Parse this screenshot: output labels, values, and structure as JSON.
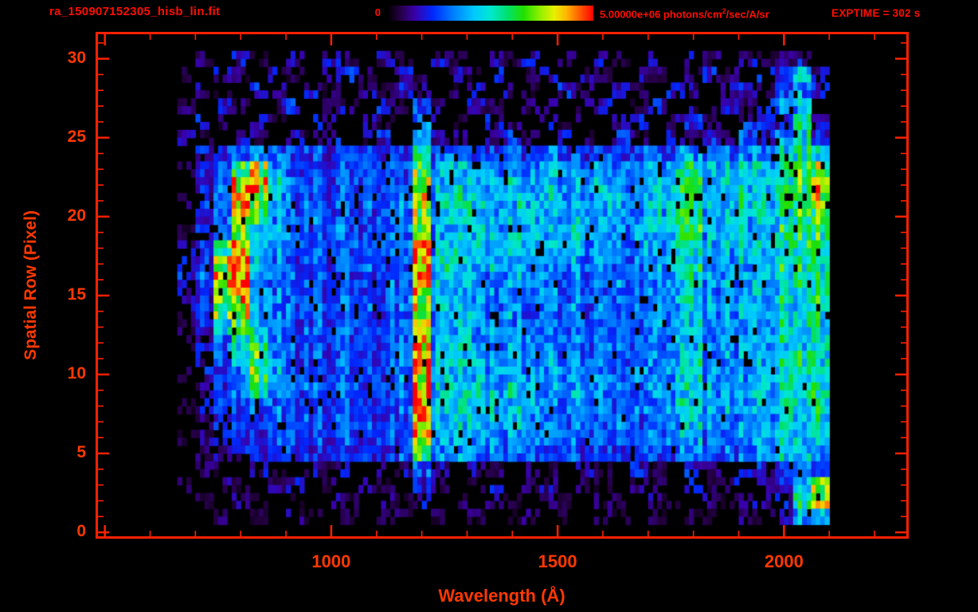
{
  "header": {
    "filename": "ra_150907152305_hisb_lin.fit",
    "colorbar_min": "0",
    "colorbar_max_prefix": "5.00000e+06 photons/cm",
    "colorbar_max_sup": "2",
    "colorbar_max_suffix": "/sec/A/sr",
    "exptime": "EXPTIME = 302 s"
  },
  "axes": {
    "xlabel": "Wavelength (Å)",
    "ylabel": "Spatial Row (Pixel)",
    "x_ticks": [
      1000,
      1500,
      2000
    ],
    "y_ticks": [
      0,
      5,
      10,
      15,
      20,
      25,
      30
    ],
    "x_range": [
      483,
      2272
    ],
    "y_range": [
      -0.3,
      31.6
    ],
    "x_minor_step": 100,
    "x_major_step": 500,
    "y_minor_step": 1,
    "y_major_step": 5
  },
  "colors": {
    "palette": {
      "background": "#000000",
      "frame": "#ff2000",
      "text-header": "#ff0e00",
      "text-axis": "#ff3800"
    },
    "colormap_stops": [
      [
        0.0,
        "#000000"
      ],
      [
        0.06,
        "#250043"
      ],
      [
        0.13,
        "#3a00a8"
      ],
      [
        0.22,
        "#0028ff"
      ],
      [
        0.32,
        "#0080ff"
      ],
      [
        0.42,
        "#00c8ff"
      ],
      [
        0.5,
        "#00e8d0"
      ],
      [
        0.58,
        "#00e070"
      ],
      [
        0.66,
        "#20e000"
      ],
      [
        0.74,
        "#90f000"
      ],
      [
        0.81,
        "#e8f000"
      ],
      [
        0.87,
        "#ffb400"
      ],
      [
        0.93,
        "#ff6000"
      ],
      [
        1.0,
        "#ff0000"
      ]
    ]
  },
  "chart_data": {
    "type": "heatmap",
    "title": "ra_150907152305_hisb_lin.fit",
    "xlabel": "Wavelength (Å)",
    "ylabel": "Spatial Row (Pixel)",
    "exposure_time_s": 302,
    "intensity_min": 0,
    "intensity_max": 5000000,
    "intensity_units": "photons/cm2/sec/A/sr",
    "wavelength_bin_start_A": 660,
    "wavelength_bin_width_A": 40,
    "n_wavelength_bins": 36,
    "row_order": "rows listed top to bottom, spatial row 30 down to 1",
    "values_percent_of_max": [
      [
        0,
        8,
        0,
        12,
        5,
        0,
        9,
        0,
        14,
        6,
        0,
        10,
        4,
        0,
        12,
        7,
        0,
        9,
        5,
        13,
        0,
        8,
        0,
        11,
        6,
        0,
        10,
        0,
        13,
        7,
        0,
        12,
        5,
        9,
        15,
        0
      ],
      [
        5,
        0,
        14,
        7,
        0,
        11,
        5,
        0,
        9,
        16,
        6,
        0,
        12,
        5,
        0,
        10,
        7,
        14,
        0,
        6,
        11,
        0,
        9,
        5,
        0,
        13,
        6,
        0,
        10,
        16,
        8,
        0,
        14,
        20,
        45,
        10
      ],
      [
        0,
        10,
        5,
        0,
        15,
        8,
        0,
        12,
        6,
        0,
        10,
        5,
        18,
        9,
        0,
        7,
        13,
        0,
        10,
        5,
        0,
        14,
        8,
        0,
        11,
        6,
        0,
        15,
        9,
        0,
        12,
        18,
        6,
        25,
        35,
        15
      ],
      [
        7,
        0,
        12,
        6,
        0,
        9,
        15,
        0,
        7,
        11,
        0,
        16,
        5,
        22,
        8,
        0,
        12,
        6,
        0,
        10,
        15,
        0,
        8,
        12,
        0,
        6,
        14,
        0,
        10,
        5,
        20,
        8,
        15,
        30,
        40,
        0
      ],
      [
        0,
        13,
        6,
        0,
        10,
        5,
        0,
        16,
        8,
        0,
        12,
        6,
        0,
        28,
        10,
        5,
        0,
        14,
        7,
        0,
        11,
        6,
        16,
        0,
        9,
        13,
        0,
        8,
        18,
        6,
        0,
        15,
        25,
        20,
        50,
        12
      ],
      [
        10,
        5,
        0,
        15,
        8,
        0,
        12,
        6,
        18,
        0,
        9,
        14,
        0,
        35,
        12,
        8,
        0,
        10,
        16,
        6,
        0,
        13,
        7,
        0,
        15,
        9,
        0,
        12,
        6,
        20,
        10,
        25,
        15,
        35,
        55,
        18
      ],
      [
        0,
        15,
        20,
        25,
        40,
        30,
        22,
        25,
        20,
        28,
        24,
        20,
        26,
        50,
        30,
        35,
        25,
        28,
        30,
        26,
        32,
        28,
        25,
        30,
        26,
        28,
        25,
        30,
        35,
        28,
        30,
        34,
        38,
        42,
        55,
        45
      ],
      [
        5,
        18,
        25,
        55,
        75,
        35,
        26,
        24,
        28,
        25,
        30,
        26,
        28,
        62,
        35,
        45,
        38,
        40,
        42,
        38,
        44,
        40,
        36,
        40,
        38,
        36,
        38,
        48,
        55,
        38,
        40,
        44,
        48,
        52,
        60,
        70
      ],
      [
        0,
        20,
        28,
        80,
        85,
        40,
        28,
        26,
        25,
        30,
        26,
        28,
        30,
        78,
        38,
        50,
        42,
        44,
        46,
        42,
        46,
        42,
        40,
        42,
        40,
        38,
        40,
        52,
        58,
        40,
        42,
        46,
        50,
        55,
        62,
        88
      ],
      [
        8,
        16,
        30,
        88,
        70,
        38,
        30,
        28,
        26,
        28,
        30,
        26,
        32,
        82,
        40,
        52,
        44,
        46,
        44,
        46,
        48,
        44,
        42,
        44,
        40,
        42,
        38,
        55,
        60,
        42,
        44,
        48,
        52,
        56,
        64,
        85
      ],
      [
        0,
        18,
        26,
        75,
        55,
        36,
        28,
        30,
        28,
        26,
        28,
        30,
        30,
        70,
        38,
        48,
        42,
        44,
        46,
        44,
        46,
        42,
        44,
        40,
        42,
        38,
        40,
        50,
        56,
        40,
        42,
        46,
        50,
        54,
        60,
        68
      ],
      [
        6,
        15,
        28,
        65,
        45,
        34,
        30,
        28,
        30,
        28,
        26,
        28,
        32,
        65,
        36,
        46,
        44,
        42,
        44,
        46,
        44,
        46,
        42,
        44,
        38,
        40,
        38,
        48,
        54,
        38,
        44,
        44,
        48,
        52,
        58,
        62
      ],
      [
        10,
        20,
        60,
        80,
        40,
        32,
        28,
        26,
        28,
        30,
        28,
        30,
        30,
        90,
        40,
        50,
        42,
        44,
        42,
        40,
        42,
        40,
        38,
        40,
        36,
        38,
        36,
        46,
        52,
        38,
        40,
        44,
        48,
        52,
        58,
        60
      ],
      [
        12,
        22,
        75,
        90,
        38,
        30,
        26,
        28,
        26,
        28,
        30,
        28,
        32,
        92,
        42,
        48,
        40,
        42,
        40,
        38,
        36,
        38,
        36,
        38,
        34,
        36,
        34,
        44,
        50,
        36,
        40,
        42,
        46,
        50,
        56,
        58
      ],
      [
        15,
        25,
        80,
        92,
        36,
        28,
        28,
        26,
        28,
        26,
        28,
        30,
        30,
        90,
        40,
        46,
        38,
        36,
        38,
        36,
        34,
        36,
        34,
        32,
        36,
        34,
        32,
        42,
        48,
        36,
        38,
        42,
        46,
        50,
        54,
        56
      ],
      [
        12,
        20,
        70,
        85,
        34,
        30,
        26,
        28,
        26,
        28,
        26,
        28,
        32,
        75,
        38,
        44,
        36,
        38,
        36,
        34,
        36,
        32,
        34,
        32,
        34,
        32,
        34,
        40,
        46,
        34,
        38,
        40,
        44,
        48,
        52,
        55
      ],
      [
        10,
        22,
        60,
        75,
        36,
        28,
        28,
        26,
        28,
        26,
        28,
        26,
        30,
        68,
        36,
        42,
        36,
        34,
        36,
        32,
        34,
        34,
        32,
        34,
        30,
        32,
        30,
        38,
        44,
        34,
        36,
        40,
        44,
        46,
        50,
        52
      ],
      [
        8,
        18,
        40,
        60,
        45,
        30,
        26,
        28,
        26,
        28,
        26,
        28,
        30,
        72,
        34,
        42,
        34,
        36,
        32,
        34,
        32,
        30,
        32,
        30,
        32,
        30,
        32,
        38,
        42,
        32,
        36,
        38,
        42,
        46,
        50,
        54
      ],
      [
        5,
        15,
        25,
        50,
        55,
        32,
        28,
        26,
        28,
        26,
        28,
        26,
        30,
        88,
        36,
        44,
        36,
        34,
        38,
        40,
        36,
        34,
        32,
        34,
        30,
        32,
        30,
        38,
        44,
        34,
        36,
        40,
        42,
        46,
        50,
        52
      ],
      [
        0,
        12,
        22,
        40,
        60,
        34,
        26,
        28,
        26,
        28,
        26,
        28,
        30,
        85,
        38,
        46,
        40,
        42,
        40,
        38,
        40,
        36,
        34,
        32,
        34,
        30,
        32,
        40,
        46,
        32,
        38,
        38,
        44,
        46,
        52,
        55
      ],
      [
        6,
        14,
        20,
        35,
        70,
        36,
        28,
        26,
        28,
        26,
        28,
        26,
        32,
        78,
        40,
        48,
        42,
        44,
        42,
        40,
        38,
        38,
        36,
        34,
        32,
        34,
        30,
        42,
        48,
        34,
        36,
        40,
        44,
        48,
        52,
        56
      ],
      [
        0,
        10,
        18,
        28,
        55,
        34,
        26,
        28,
        26,
        28,
        26,
        28,
        30,
        90,
        42,
        50,
        44,
        42,
        44,
        42,
        40,
        36,
        38,
        34,
        34,
        32,
        34,
        40,
        46,
        36,
        38,
        42,
        44,
        48,
        54,
        58
      ],
      [
        5,
        12,
        16,
        24,
        30,
        30,
        28,
        26,
        28,
        26,
        28,
        26,
        30,
        92,
        44,
        48,
        42,
        44,
        40,
        42,
        38,
        38,
        34,
        36,
        32,
        34,
        30,
        42,
        44,
        34,
        38,
        40,
        44,
        48,
        52,
        55
      ],
      [
        0,
        8,
        14,
        20,
        26,
        28,
        26,
        28,
        26,
        24,
        26,
        28,
        28,
        90,
        40,
        46,
        40,
        38,
        40,
        38,
        36,
        34,
        36,
        32,
        34,
        30,
        32,
        38,
        42,
        32,
        36,
        38,
        42,
        46,
        50,
        52
      ],
      [
        4,
        10,
        12,
        18,
        22,
        26,
        24,
        26,
        24,
        26,
        24,
        26,
        28,
        85,
        36,
        42,
        36,
        38,
        34,
        36,
        32,
        34,
        30,
        32,
        28,
        30,
        28,
        36,
        40,
        30,
        34,
        36,
        40,
        44,
        48,
        50
      ],
      [
        0,
        6,
        10,
        14,
        18,
        20,
        22,
        20,
        24,
        20,
        24,
        22,
        26,
        60,
        30,
        36,
        30,
        32,
        28,
        30,
        26,
        28,
        24,
        26,
        22,
        26,
        22,
        30,
        34,
        26,
        30,
        32,
        36,
        40,
        44,
        46
      ],
      [
        0,
        8,
        5,
        0,
        12,
        6,
        0,
        10,
        5,
        14,
        0,
        8,
        12,
        25,
        10,
        0,
        15,
        6,
        0,
        12,
        5,
        0,
        10,
        6,
        0,
        14,
        5,
        0,
        16,
        8,
        0,
        12,
        15,
        20,
        30,
        25
      ],
      [
        5,
        0,
        10,
        4,
        0,
        8,
        12,
        0,
        6,
        0,
        10,
        5,
        0,
        18,
        8,
        0,
        5,
        12,
        0,
        6,
        10,
        0,
        8,
        4,
        0,
        10,
        6,
        0,
        12,
        5,
        15,
        0,
        10,
        18,
        45,
        80
      ],
      [
        0,
        5,
        0,
        8,
        4,
        0,
        6,
        0,
        10,
        5,
        0,
        8,
        4,
        12,
        0,
        6,
        0,
        8,
        5,
        0,
        7,
        4,
        0,
        8,
        5,
        0,
        9,
        4,
        0,
        10,
        5,
        12,
        8,
        15,
        55,
        85
      ],
      [
        0,
        0,
        6,
        0,
        5,
        0,
        8,
        4,
        0,
        6,
        0,
        5,
        9,
        0,
        5,
        0,
        6,
        0,
        4,
        7,
        0,
        5,
        0,
        6,
        4,
        0,
        5,
        0,
        7,
        4,
        0,
        8,
        5,
        10,
        40,
        50
      ]
    ],
    "notable_features": [
      {
        "feature": "bright curved emission arc",
        "wavelength_range_A": [
          740,
          870
        ],
        "row_range": [
          9,
          24
        ]
      },
      {
        "feature": "strong emission line (brightest, saturated red core)",
        "wavelength_range_A": [
          1185,
          1225
        ],
        "row_range": [
          5,
          24
        ]
      },
      {
        "feature": "secondary emission line",
        "wavelength_range_A": [
          1260,
          1300
        ],
        "row_range": [
          8,
          23
        ]
      },
      {
        "feature": "emission line",
        "wavelength_range_A": [
          1780,
          1820
        ],
        "row_range": [
          6,
          23
        ]
      },
      {
        "feature": "bright band at long-wavelength edge",
        "wavelength_range_A": [
          2020,
          2090
        ],
        "row_range": [
          1,
          25
        ]
      },
      {
        "feature": "sparse detector noise speckle",
        "wavelength_range_A": [
          700,
          2090
        ],
        "row_range_top": [
          25,
          30
        ],
        "row_range_bottom": [
          1,
          4
        ]
      }
    ]
  }
}
